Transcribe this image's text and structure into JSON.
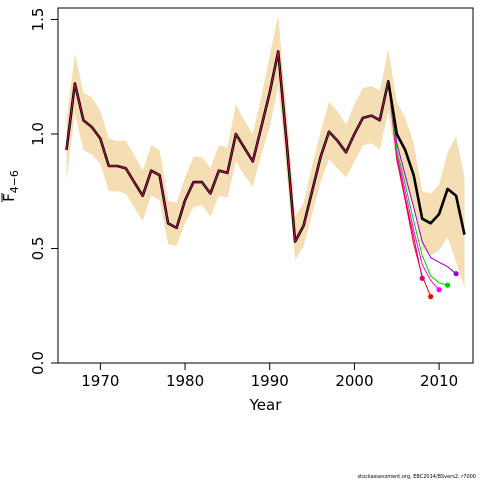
{
  "chart_data": {
    "type": "line",
    "xlabel": "Year",
    "ylabel": "F",
    "ylabel_subscript": "4−6",
    "xlim": [
      1965,
      2014
    ],
    "ylim": [
      0,
      1.55
    ],
    "x_ticks": [
      1970,
      1980,
      1990,
      2000,
      2010
    ],
    "y_ticks": [
      0.0,
      0.5,
      1.0,
      1.5
    ],
    "x_tick_labels": [
      "1970",
      "1980",
      "1990",
      "2000",
      "2010"
    ],
    "y_tick_labels": [
      "0.0",
      "0.5",
      "1.0",
      "1.5"
    ],
    "grid": false,
    "colors": {
      "band": "#f5deb3",
      "main": "#000000",
      "retro": [
        "#ff0000",
        "#ff00ff",
        "#00cd00",
        "#8b008b",
        "#9400d3"
      ]
    },
    "main_series": {
      "x": [
        1966,
        1967,
        1968,
        1969,
        1970,
        1971,
        1972,
        1973,
        1974,
        1975,
        1976,
        1977,
        1978,
        1979,
        1980,
        1981,
        1982,
        1983,
        1984,
        1985,
        1986,
        1987,
        1988,
        1989,
        1990,
        1991,
        1992,
        1993,
        1994,
        1995,
        1996,
        1997,
        1998,
        1999,
        2000,
        2001,
        2002,
        2003,
        2004,
        2005,
        2006,
        2007,
        2008,
        2009,
        2010,
        2011,
        2012,
        2013
      ],
      "y": [
        0.93,
        1.22,
        1.06,
        1.03,
        0.98,
        0.86,
        0.86,
        0.85,
        0.79,
        0.73,
        0.84,
        0.82,
        0.61,
        0.59,
        0.71,
        0.79,
        0.79,
        0.74,
        0.84,
        0.83,
        1.0,
        0.94,
        0.88,
        1.03,
        1.18,
        1.36,
        0.96,
        0.53,
        0.6,
        0.75,
        0.9,
        1.01,
        0.97,
        0.92,
        1.0,
        1.07,
        1.08,
        1.06,
        1.23,
        1.0,
        0.93,
        0.82,
        0.63,
        0.61,
        0.65,
        0.76,
        0.73,
        0.56
      ]
    },
    "confidence_band": {
      "x": [
        1966,
        1967,
        1968,
        1969,
        1970,
        1971,
        1972,
        1973,
        1974,
        1975,
        1976,
        1977,
        1978,
        1979,
        1980,
        1981,
        1982,
        1983,
        1984,
        1985,
        1986,
        1987,
        1988,
        1989,
        1990,
        1991,
        1992,
        1993,
        1994,
        1995,
        1996,
        1997,
        1998,
        1999,
        2000,
        2001,
        2002,
        2003,
        2004,
        2005,
        2006,
        2007,
        2008,
        2009,
        2010,
        2011,
        2012,
        2013
      ],
      "upper": [
        1.06,
        1.35,
        1.18,
        1.16,
        1.1,
        0.98,
        0.97,
        0.97,
        0.91,
        0.84,
        0.95,
        0.93,
        0.71,
        0.7,
        0.81,
        0.9,
        0.9,
        0.85,
        0.95,
        0.94,
        1.13,
        1.06,
        1.0,
        1.16,
        1.34,
        1.52,
        1.1,
        0.64,
        0.7,
        0.86,
        1.01,
        1.14,
        1.1,
        1.04,
        1.13,
        1.2,
        1.21,
        1.19,
        1.37,
        1.14,
        1.07,
        0.96,
        0.75,
        0.74,
        0.78,
        0.92,
        0.99,
        0.81
      ],
      "lower": [
        0.8,
        1.09,
        0.93,
        0.91,
        0.87,
        0.75,
        0.75,
        0.74,
        0.68,
        0.62,
        0.73,
        0.71,
        0.52,
        0.51,
        0.61,
        0.68,
        0.69,
        0.64,
        0.73,
        0.72,
        0.88,
        0.82,
        0.77,
        0.91,
        1.03,
        1.21,
        0.83,
        0.45,
        0.51,
        0.65,
        0.79,
        0.89,
        0.85,
        0.81,
        0.88,
        0.95,
        0.96,
        0.93,
        1.1,
        0.86,
        0.79,
        0.68,
        0.5,
        0.47,
        0.49,
        0.55,
        0.44,
        0.33
      ]
    },
    "retro_series": [
      {
        "x": [
          2004,
          2005,
          2006,
          2007,
          2008,
          2009
        ],
        "y": [
          1.23,
          0.89,
          0.71,
          0.52,
          0.38,
          0.29
        ],
        "color": "#ff0000"
      },
      {
        "x": [
          2004,
          2005,
          2006,
          2007,
          2008
        ],
        "y": [
          1.23,
          0.9,
          0.72,
          0.55,
          0.37
        ],
        "color": "#cc0077"
      },
      {
        "x": [
          2004,
          2005,
          2006,
          2007,
          2008,
          2009,
          2010
        ],
        "y": [
          1.23,
          0.91,
          0.75,
          0.58,
          0.43,
          0.36,
          0.32
        ],
        "color": "#ff00ff"
      },
      {
        "x": [
          2004,
          2005,
          2006,
          2007,
          2008,
          2009,
          2010,
          2011
        ],
        "y": [
          1.23,
          0.93,
          0.78,
          0.62,
          0.47,
          0.38,
          0.35,
          0.34
        ],
        "color": "#00cd00"
      },
      {
        "x": [
          2004,
          2005,
          2006,
          2007,
          2008,
          2009,
          2010,
          2011,
          2012
        ],
        "y": [
          1.23,
          0.96,
          0.82,
          0.68,
          0.53,
          0.46,
          0.44,
          0.42,
          0.39
        ],
        "color": "#9400d3"
      }
    ],
    "footer": "stockassessment.org, EBC2014/BSvers2, r7000"
  }
}
